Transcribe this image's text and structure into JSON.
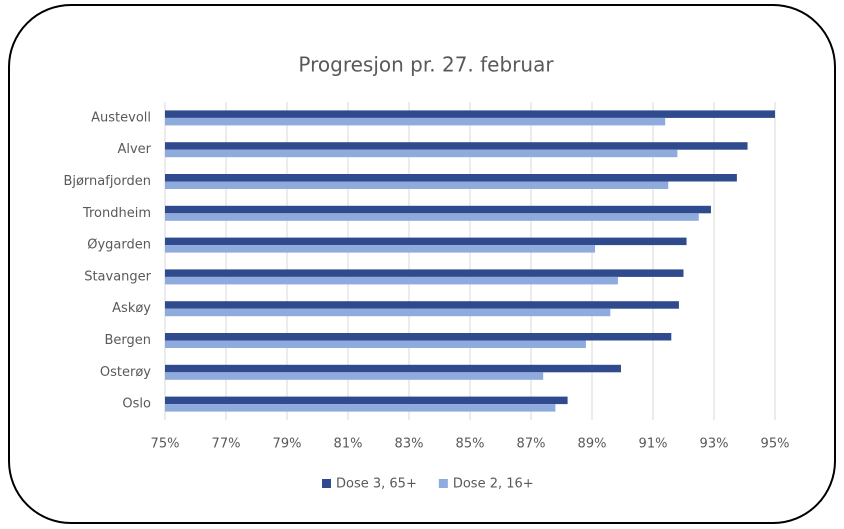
{
  "chart_data": {
    "type": "hbar",
    "title": "Progresjon pr. 27. februar",
    "categories": [
      "Austevoll",
      "Alver",
      "Bjørnafjorden",
      "Trondheim",
      "Øygarden",
      "Stavanger",
      "Askøy",
      "Bergen",
      "Osterøy",
      "Oslo"
    ],
    "series": [
      {
        "name": "Dose 3, 65+",
        "color": "#2f4b8e",
        "values": [
          95.0,
          94.1,
          93.75,
          92.9,
          92.1,
          92.0,
          91.85,
          91.6,
          89.95,
          88.2
        ]
      },
      {
        "name": "Dose 2, 16+",
        "color": "#8faadc",
        "values": [
          91.4,
          91.8,
          91.5,
          92.5,
          89.1,
          89.85,
          89.6,
          88.8,
          87.4,
          87.8
        ]
      }
    ],
    "xlim": [
      75,
      95
    ],
    "xticks": [
      {
        "value": 75,
        "label": "75%"
      },
      {
        "value": 77,
        "label": "77%"
      },
      {
        "value": 79,
        "label": "79%"
      },
      {
        "value": 81,
        "label": "81%"
      },
      {
        "value": 83,
        "label": "83%"
      },
      {
        "value": 85,
        "label": "85%"
      },
      {
        "value": 87,
        "label": "87%"
      },
      {
        "value": 89,
        "label": "89%"
      },
      {
        "value": 91,
        "label": "91%"
      },
      {
        "value": 93,
        "label": "93%"
      },
      {
        "value": 95,
        "label": "95%"
      }
    ],
    "grid": true,
    "legend": "bottom"
  }
}
